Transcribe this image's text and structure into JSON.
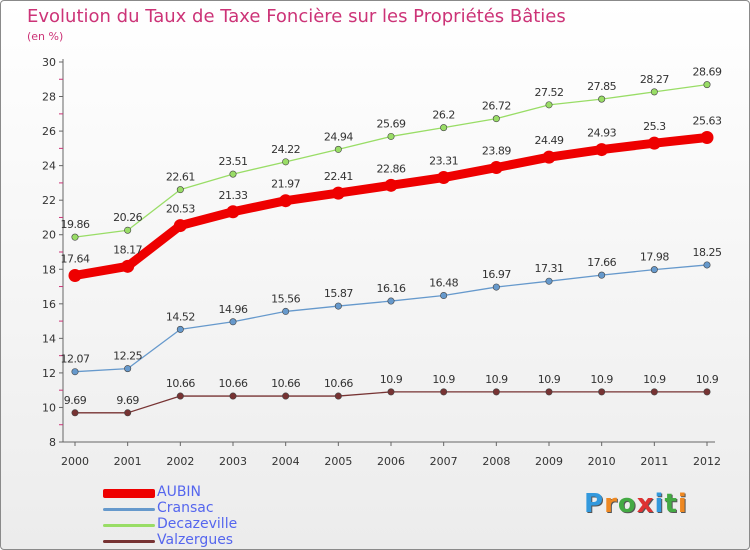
{
  "header": {
    "title": "Evolution du Taux de Taxe Foncière sur les Propriétés Bâties",
    "subtitle": "(en %)"
  },
  "chart_data": {
    "type": "line",
    "x": [
      "2000",
      "2001",
      "2002",
      "2003",
      "2004",
      "2005",
      "2006",
      "2007",
      "2008",
      "2009",
      "2010",
      "2011",
      "2012"
    ],
    "ylim": [
      8,
      30
    ],
    "yticks": [
      8,
      10,
      12,
      14,
      16,
      18,
      20,
      22,
      24,
      26,
      28,
      30
    ],
    "grid": false,
    "legend_position": "bottom-left",
    "series": [
      {
        "name": "AUBIN",
        "color": "#ee0000",
        "values": [
          17.64,
          18.17,
          20.53,
          21.33,
          21.97,
          22.41,
          22.86,
          23.31,
          23.89,
          24.49,
          24.93,
          25.3,
          25.63
        ],
        "labels": [
          "17.64",
          "18.17",
          "20.53",
          "21.33",
          "21.97",
          "22.41",
          "22.86",
          "23.31",
          "23.89",
          "24.49",
          "24.93",
          "25.3",
          "25.63"
        ]
      },
      {
        "name": "Cransac",
        "color": "#6699cc",
        "values": [
          12.07,
          12.25,
          14.52,
          14.96,
          15.56,
          15.87,
          16.16,
          16.48,
          16.97,
          17.31,
          17.66,
          17.98,
          18.25
        ],
        "labels": [
          "12.07",
          "12.25",
          "14.52",
          "14.96",
          "15.56",
          "15.87",
          "16.16",
          "16.48",
          "16.97",
          "17.31",
          "17.66",
          "17.98",
          "18.25"
        ]
      },
      {
        "name": "Decazeville",
        "color": "#99dd66",
        "values": [
          19.86,
          20.26,
          22.61,
          23.51,
          24.22,
          24.94,
          25.69,
          26.2,
          26.72,
          27.52,
          27.85,
          28.27,
          28.69
        ],
        "labels": [
          "19.86",
          "20.26",
          "22.61",
          "23.51",
          "24.22",
          "24.94",
          "25.69",
          "26.2",
          "26.72",
          "27.52",
          "27.85",
          "28.27",
          "28.69"
        ]
      },
      {
        "name": "Valzergues",
        "color": "#773333",
        "values": [
          9.69,
          9.69,
          10.66,
          10.66,
          10.66,
          10.66,
          10.9,
          10.9,
          10.9,
          10.9,
          10.9,
          10.9,
          10.9
        ],
        "labels": [
          "9.69",
          "9.69",
          "10.66",
          "10.66",
          "10.66",
          "10.66",
          "10.9",
          "10.9",
          "10.9",
          "10.9",
          "10.9",
          "10.9",
          "10.9"
        ]
      }
    ]
  },
  "legend": {
    "items": [
      {
        "label": "AUBIN",
        "color": "#ee0000"
      },
      {
        "label": "Cransac",
        "color": "#6699cc"
      },
      {
        "label": "Decazeville",
        "color": "#99dd66"
      },
      {
        "label": "Valzergues",
        "color": "#773333"
      }
    ]
  },
  "logo": {
    "text": "Proxiti"
  }
}
